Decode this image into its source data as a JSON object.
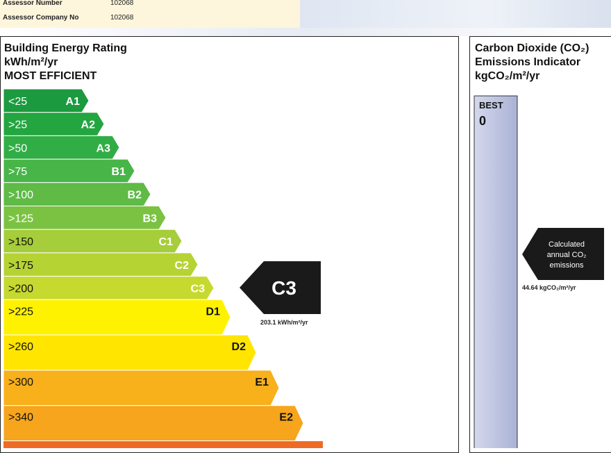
{
  "header": {
    "rows": [
      [
        "Assessor Number",
        "102068"
      ],
      [
        "Assessor Company No",
        "102068"
      ]
    ]
  },
  "rating_panel": {
    "title": "Building Energy Rating",
    "unit": "kWh/m²/yr",
    "subtitle": "MOST EFFICIENT",
    "bands": [
      {
        "range": "<25",
        "grade": "A1",
        "color": "#1b9a3f"
      },
      {
        "range": ">25",
        "grade": "A2",
        "color": "#23a540"
      },
      {
        "range": ">50",
        "grade": "A3",
        "color": "#31ad45"
      },
      {
        "range": ">75",
        "grade": "B1",
        "color": "#48b548"
      },
      {
        "range": ">100",
        "grade": "B2",
        "color": "#5fba46"
      },
      {
        "range": ">125",
        "grade": "B3",
        "color": "#7bc243"
      },
      {
        "range": ">150",
        "grade": "C1",
        "color": "#a6cd3a"
      },
      {
        "range": ">175",
        "grade": "C2",
        "color": "#b6d334"
      },
      {
        "range": ">200",
        "grade": "C3",
        "color": "#c6d92f"
      },
      {
        "range": ">225",
        "grade": "D1",
        "color": "#fff200"
      },
      {
        "range": ">260",
        "grade": "D2",
        "color": "#ffe500"
      },
      {
        "range": ">300",
        "grade": "E1",
        "color": "#f8b01b"
      },
      {
        "range": ">340",
        "grade": "E2",
        "color": "#f6a51d"
      }
    ],
    "rating": "C3",
    "rating_value": "203.1 kWh/m²/yr"
  },
  "co2_panel": {
    "title": "Carbon Dioxide (CO₂)",
    "title2": "Emissions Indicator",
    "unit": "kgCO₂/m²/yr",
    "best": "BEST",
    "best_value": "0",
    "pointer": [
      "Calculated",
      "annual CO₂",
      "emissions"
    ],
    "value": "44.64 kgCO₂/m²/yr"
  }
}
